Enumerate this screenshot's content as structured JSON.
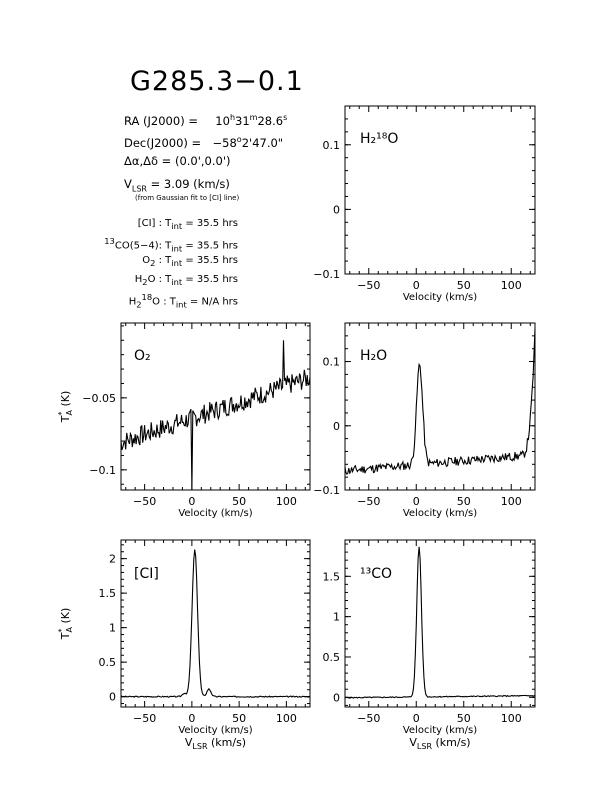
{
  "title": "G285.3−0.1",
  "source_info": {
    "ra_label": "RA (J2000) =",
    "ra": {
      "h": "10",
      "m": "31",
      "s": "28.6"
    },
    "dec_label": "Dec(J2000) =",
    "dec": {
      "deg": "−58",
      "arcmin": "2",
      "arcsec": "47.0"
    },
    "offset_label": "Δα,Δδ =",
    "offset": "(0.0',0.0')",
    "vlsr_label": "V",
    "vlsr_sub": "LSR",
    "vlsr": "= 3.09 (km/s)",
    "vlsr_note": "(from Gaussian fit to [CI] line)"
  },
  "integration_times": [
    {
      "label": "[CI] :",
      "sup": "",
      "t": "T",
      "t_sub": "int",
      "value": "= 35.5 hrs"
    },
    {
      "label": "CO(5−4):",
      "sup": "13",
      "t": "T",
      "t_sub": "int",
      "value": "= 35.5 hrs"
    },
    {
      "label": "O",
      "sub": "2",
      "suffix": " :",
      "t": "T",
      "t_sub": "int",
      "value": "= 35.5 hrs"
    },
    {
      "label": "H",
      "sub": "2",
      "suffix": "O :",
      "t": "T",
      "t_sub": "int",
      "value": "= 35.5 hrs"
    },
    {
      "label": "H",
      "sub": "2",
      "sup2": "18",
      "suffix": "O :",
      "t": "T",
      "t_sub": "int",
      "value": "= N/A hrs"
    }
  ],
  "chart_data": [
    {
      "id": "h218o",
      "type": "line",
      "label": "H₂¹⁸O",
      "xlabel": "Velocity (km/s)",
      "ylabel": "",
      "xlim": [
        -75,
        125
      ],
      "ylim": [
        -0.1,
        0.16
      ],
      "xticks": [
        -50,
        0,
        50,
        100
      ],
      "yticks": [
        -0.1,
        0,
        0.1
      ],
      "ytick_labels": [
        "-0.1",
        "0",
        "0.1"
      ],
      "series": []
    },
    {
      "id": "o2",
      "type": "line",
      "label": "O₂",
      "xlabel": "Velocity (km/s)",
      "ylabel": "T*A (K)",
      "xlim": [
        -75,
        125
      ],
      "ylim": [
        -0.114,
        0.002
      ],
      "xticks": [
        -50,
        0,
        50,
        100
      ],
      "yticks": [
        -0.1,
        -0.05
      ],
      "ytick_labels": [
        "-0.1",
        "-0.05"
      ],
      "series": [
        {
          "kind": "noise",
          "baseline_start": -0.081,
          "baseline_end": -0.036,
          "noise": 0.007,
          "seed": 7,
          "spikes": [
            {
              "x": 0,
              "y": -0.114
            },
            {
              "x": 97,
              "y": -0.01
            }
          ]
        }
      ]
    },
    {
      "id": "h2o",
      "type": "line",
      "label": "H₂O",
      "xlabel": "Velocity (km/s)",
      "ylabel": "",
      "xlim": [
        -75,
        125
      ],
      "ylim": [
        -0.1,
        0.16
      ],
      "xticks": [
        -50,
        0,
        50,
        100
      ],
      "yticks": [
        -0.1,
        0,
        0.1
      ],
      "ytick_labels": [
        "-0.1",
        "0",
        "0.1"
      ],
      "series": [
        {
          "kind": "gauss",
          "baseline_start": -0.07,
          "baseline_end": -0.045,
          "noise": 0.007,
          "seed": 11,
          "peaks": [
            {
              "center": 3.5,
              "amp": 0.155,
              "width": 3.2
            }
          ],
          "edge_rise": {
            "start": 110,
            "end_value": 0.145
          }
        }
      ]
    },
    {
      "id": "ci",
      "type": "line",
      "label": "[CI]",
      "xlabel": "Velocity (km/s)",
      "xlabel2": "V",
      "xlabel2_sub": "LSR",
      "xlabel2_rest": " (km/s)",
      "ylabel": "T*A (K)",
      "xlim": [
        -75,
        125
      ],
      "ylim": [
        -0.15,
        2.27
      ],
      "xticks": [
        -50,
        0,
        50,
        100
      ],
      "yticks": [
        0,
        0.5,
        1,
        1.5,
        2
      ],
      "ytick_labels": [
        "0",
        "0.5",
        "1",
        "1.5",
        "2"
      ],
      "series": [
        {
          "kind": "gauss",
          "baseline_start": 0.0,
          "baseline_end": 0.0,
          "noise": 0.008,
          "seed": 3,
          "peaks": [
            {
              "center": 3.1,
              "amp": 2.13,
              "width": 2.9
            },
            {
              "center": -8,
              "amp": 0.05,
              "width": 2.0
            },
            {
              "center": 18,
              "amp": 0.11,
              "width": 2.2
            }
          ]
        }
      ]
    },
    {
      "id": "13co",
      "type": "line",
      "label": "¹³CO",
      "xlabel": "Velocity (km/s)",
      "xlabel2": "V",
      "xlabel2_sub": "LSR",
      "xlabel2_rest": " (km/s)",
      "ylabel": "",
      "xlim": [
        -75,
        125
      ],
      "ylim": [
        -0.12,
        1.95
      ],
      "xticks": [
        -50,
        0,
        50,
        100
      ],
      "yticks": [
        0,
        0.5,
        1,
        1.5
      ],
      "ytick_labels": [
        "0",
        "0.5",
        "1",
        "1.5"
      ],
      "series": [
        {
          "kind": "gauss",
          "baseline_start": -0.005,
          "baseline_end": 0.02,
          "noise": 0.006,
          "seed": 5,
          "peaks": [
            {
              "center": 3.0,
              "amp": 1.86,
              "width": 2.5
            }
          ]
        }
      ]
    }
  ]
}
